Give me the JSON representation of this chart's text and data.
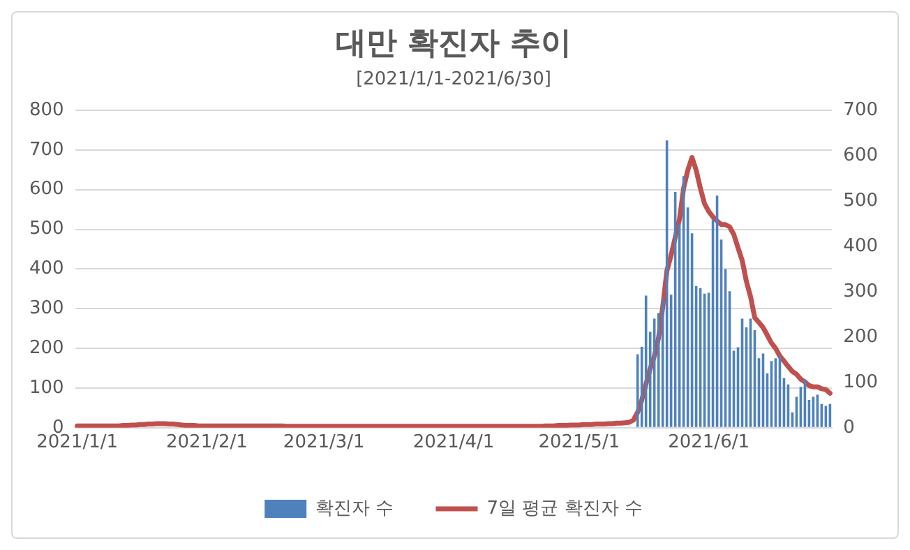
{
  "chart_data": {
    "type": "bar",
    "title": "대만 확진자 추이",
    "subtitle": "[2021/1/1-2021/6/30]",
    "categories": [
      "2021/1/1",
      null,
      null,
      null,
      null,
      null,
      null,
      null,
      null,
      null,
      null,
      null,
      null,
      null,
      null,
      null,
      null,
      null,
      null,
      null,
      null,
      null,
      null,
      null,
      null,
      null,
      null,
      null,
      null,
      null,
      null,
      "2021/2/1",
      null,
      null,
      null,
      null,
      null,
      null,
      null,
      null,
      null,
      null,
      null,
      null,
      null,
      null,
      null,
      null,
      null,
      null,
      null,
      null,
      null,
      null,
      null,
      null,
      null,
      null,
      null,
      "2021/3/1",
      null,
      null,
      null,
      null,
      null,
      null,
      null,
      null,
      null,
      null,
      null,
      null,
      null,
      null,
      null,
      null,
      null,
      null,
      null,
      null,
      null,
      null,
      null,
      null,
      null,
      null,
      null,
      null,
      null,
      null,
      "2021/4/1",
      null,
      null,
      null,
      null,
      null,
      null,
      null,
      null,
      null,
      null,
      null,
      null,
      null,
      null,
      null,
      null,
      null,
      null,
      null,
      null,
      null,
      null,
      null,
      null,
      null,
      null,
      null,
      null,
      null,
      "2021/5/1",
      null,
      null,
      null,
      null,
      null,
      null,
      null,
      null,
      null,
      null,
      null,
      null,
      null,
      null,
      null,
      null,
      null,
      null,
      null,
      null,
      null,
      null,
      null,
      null,
      null,
      null,
      null,
      null,
      null,
      null,
      "2021/6/1",
      null,
      null,
      null,
      null,
      null,
      null,
      null,
      null,
      null,
      null,
      null,
      null,
      null,
      null,
      null,
      null,
      null,
      null,
      null,
      null,
      null,
      null,
      null,
      null,
      null,
      null,
      null,
      null,
      null
    ],
    "series": [
      {
        "name": "확진자 수",
        "axis": "y",
        "color": "#4f81bd",
        "values": [
          null,
          null,
          null,
          null,
          null,
          null,
          null,
          null,
          null,
          null,
          null,
          null,
          null,
          null,
          null,
          null,
          null,
          null,
          null,
          null,
          null,
          null,
          null,
          null,
          null,
          null,
          null,
          null,
          null,
          null,
          null,
          null,
          null,
          null,
          null,
          null,
          null,
          null,
          null,
          null,
          null,
          null,
          null,
          null,
          null,
          null,
          null,
          null,
          null,
          null,
          null,
          null,
          null,
          null,
          null,
          null,
          null,
          null,
          null,
          null,
          null,
          null,
          null,
          null,
          null,
          null,
          null,
          null,
          null,
          null,
          null,
          null,
          null,
          null,
          null,
          null,
          null,
          null,
          null,
          null,
          null,
          null,
          null,
          null,
          null,
          null,
          null,
          null,
          null,
          null,
          null,
          null,
          null,
          null,
          null,
          null,
          null,
          null,
          null,
          null,
          null,
          null,
          null,
          null,
          null,
          null,
          null,
          null,
          null,
          null,
          null,
          null,
          null,
          null,
          null,
          null,
          null,
          null,
          null,
          null,
          null,
          null,
          null,
          null,
          null,
          null,
          null,
          null,
          null,
          null,
          null,
          null,
          null,
          null,
          185,
          204,
          333,
          242,
          275,
          289,
          324,
          724,
          335,
          594,
          513,
          634,
          555,
          490,
          357,
          352,
          338,
          340,
          526,
          585,
          474,
          400,
          344,
          194,
          203,
          275,
          253,
          275,
          246,
          175,
          187,
          137,
          168,
          175,
          181,
          125,
          109,
          39,
          78,
          103,
          122,
          70,
          78,
          83,
          60,
          55,
          60
        ]
      },
      {
        "name": "7일 평균 확진자 수",
        "type": "line",
        "axis": "y2",
        "color": "#c0504d",
        "values": [
          4,
          4,
          4,
          4,
          4,
          4,
          4,
          4,
          4,
          4,
          4,
          5,
          5,
          6,
          6,
          7,
          7,
          8,
          8,
          9,
          9,
          9,
          8,
          8,
          7,
          6,
          5,
          5,
          5,
          4,
          4,
          4,
          4,
          4,
          4,
          4,
          4,
          4,
          4,
          4,
          4,
          4,
          4,
          4,
          4,
          4,
          4,
          4,
          4,
          4,
          3,
          3,
          3,
          3,
          3,
          3,
          3,
          3,
          3,
          3,
          3,
          3,
          3,
          3,
          3,
          3,
          3,
          3,
          3,
          3,
          3,
          3,
          3,
          3,
          3,
          3,
          3,
          3,
          3,
          3,
          3,
          3,
          3,
          3,
          3,
          3,
          3,
          3,
          3,
          3,
          3,
          3,
          3,
          3,
          3,
          3,
          3,
          3,
          3,
          3,
          3,
          3,
          3,
          3,
          3,
          3,
          3,
          3,
          3,
          3,
          3,
          3,
          4,
          4,
          4,
          5,
          5,
          5,
          6,
          6,
          6,
          7,
          7,
          7,
          8,
          8,
          8,
          9,
          9,
          10,
          10,
          11,
          12,
          17,
          34,
          61,
          96,
          130,
          158,
          198,
          266,
          346,
          380,
          420,
          460,
          528,
          568,
          596,
          568,
          528,
          494,
          477,
          465,
          456,
          448,
          448,
          443,
          426,
          397,
          369,
          323,
          289,
          243,
          232,
          221,
          204,
          187,
          175,
          158,
          147,
          135,
          124,
          118,
          107,
          101,
          93,
          90,
          90,
          86,
          84,
          76
        ]
      }
    ],
    "ylim": [
      0,
      800
    ],
    "yticks": [
      0,
      100,
      200,
      300,
      400,
      500,
      600,
      700,
      800
    ],
    "y2lim": [
      0,
      700
    ],
    "y2ticks": [
      0,
      100,
      200,
      300,
      400,
      500,
      600,
      700
    ],
    "grid": "y",
    "legend": "bottom"
  }
}
